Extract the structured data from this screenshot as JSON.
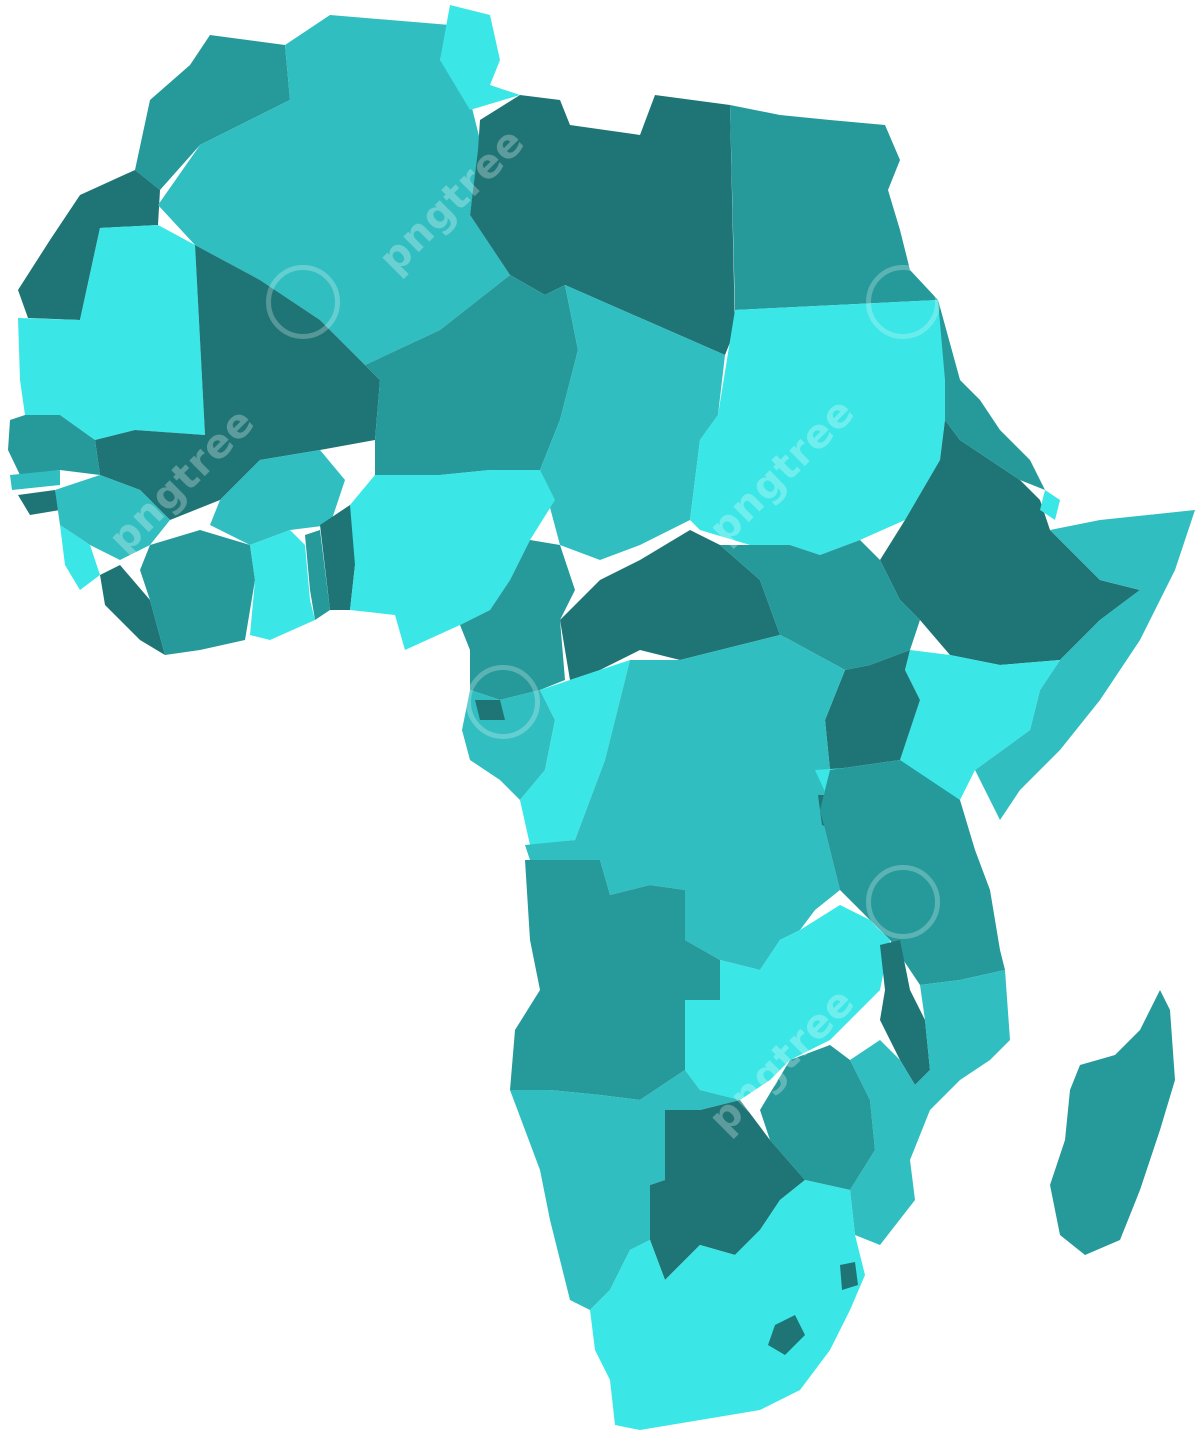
{
  "colors": {
    "dark": "#1f7576",
    "mid": "#269a9b",
    "light": "#31bec0",
    "bright": "#3ae6e6"
  },
  "watermark": {
    "text": "pngtree"
  }
}
